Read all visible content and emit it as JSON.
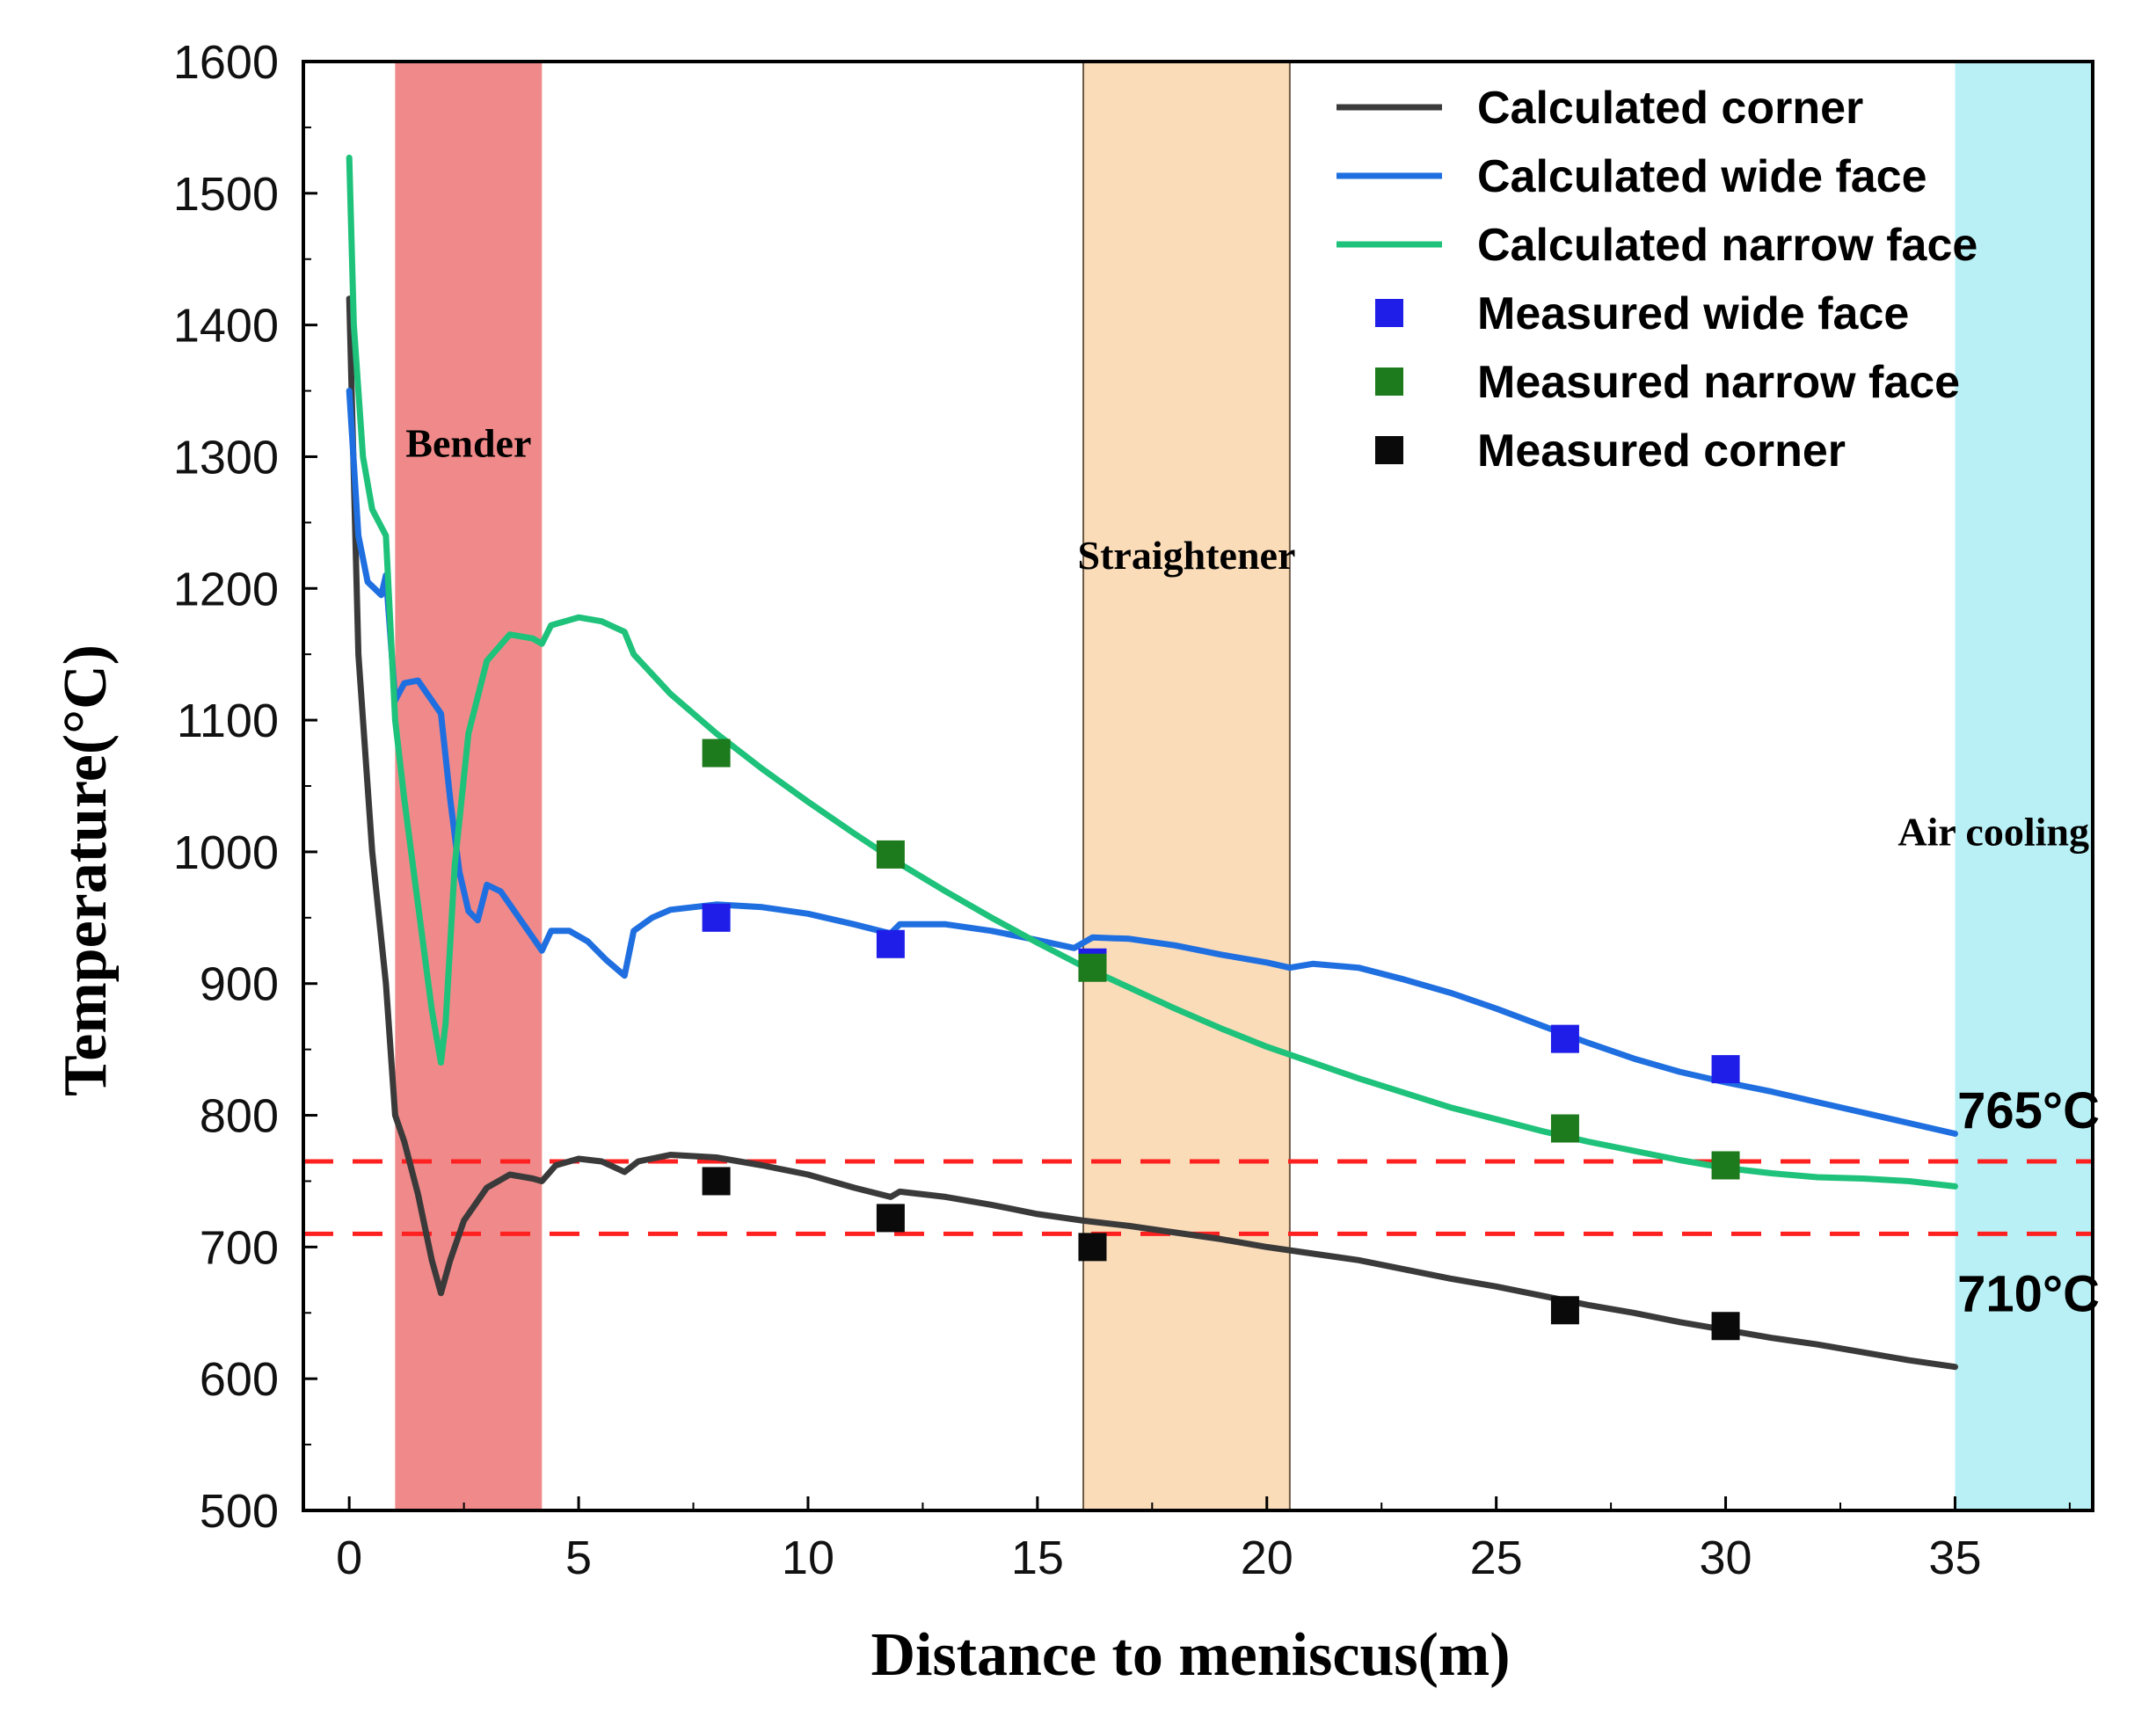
{
  "chart_data": {
    "type": "line",
    "title": "",
    "xlabel": "Distance to meniscus(m)",
    "ylabel": "Temperature(°C)",
    "xlim": [
      -1,
      38
    ],
    "ylim": [
      500,
      1600
    ],
    "xticks": [
      "0",
      "5",
      "10",
      "15",
      "20",
      "25",
      "30",
      "35"
    ],
    "yticks": [
      "500",
      "600",
      "700",
      "800",
      "900",
      "1000",
      "1100",
      "1200",
      "1300",
      "1400",
      "1500",
      "1600"
    ],
    "regions": [
      {
        "label": "Bender",
        "x_start": 1.0,
        "x_end": 4.2,
        "color": "#f08a8a"
      },
      {
        "label": "Straightener",
        "x_start": 16.0,
        "x_end": 20.5,
        "color": "#fbdcb9"
      },
      {
        "label": "Air cooling",
        "x_start": 35.0,
        "x_end": 38.0,
        "color": "#b8f0f5"
      }
    ],
    "reference_lines": [
      {
        "label": "765°C",
        "y": 765,
        "color": "#ff2020"
      },
      {
        "label": "710°C",
        "y": 710,
        "color": "#ff2020"
      }
    ],
    "series": [
      {
        "name": "Calculated corner",
        "kind": "line",
        "color": "#3a3a3a",
        "points": [
          [
            0,
            1420
          ],
          [
            0.2,
            1150
          ],
          [
            0.5,
            1000
          ],
          [
            0.8,
            900
          ],
          [
            1.0,
            800
          ],
          [
            1.2,
            780
          ],
          [
            1.5,
            740
          ],
          [
            1.8,
            690
          ],
          [
            2.0,
            665
          ],
          [
            2.2,
            690
          ],
          [
            2.5,
            720
          ],
          [
            3.0,
            745
          ],
          [
            3.5,
            755
          ],
          [
            4.0,
            752
          ],
          [
            4.2,
            750
          ],
          [
            4.5,
            762
          ],
          [
            5.0,
            767
          ],
          [
            5.5,
            765
          ],
          [
            6.0,
            757
          ],
          [
            6.3,
            765
          ],
          [
            7.0,
            770
          ],
          [
            8.0,
            768
          ],
          [
            9.0,
            762
          ],
          [
            10.0,
            755
          ],
          [
            11.0,
            745
          ],
          [
            11.8,
            738
          ],
          [
            12.0,
            742
          ],
          [
            13.0,
            738
          ],
          [
            14.0,
            732
          ],
          [
            15.0,
            725
          ],
          [
            16.0,
            720
          ],
          [
            17.0,
            716
          ],
          [
            18.0,
            711
          ],
          [
            19.0,
            706
          ],
          [
            20.0,
            700
          ],
          [
            21.0,
            695
          ],
          [
            22.0,
            690
          ],
          [
            23.0,
            683
          ],
          [
            24.0,
            676
          ],
          [
            25.0,
            670
          ],
          [
            26.0,
            663
          ],
          [
            27.0,
            656
          ],
          [
            28.0,
            650
          ],
          [
            29.0,
            643
          ],
          [
            30.0,
            637
          ],
          [
            31.0,
            631
          ],
          [
            32.0,
            626
          ],
          [
            33.0,
            620
          ],
          [
            34.0,
            614
          ],
          [
            35.0,
            609
          ]
        ]
      },
      {
        "name": "Calculated wide face",
        "kind": "line",
        "color": "#1f6fe0",
        "points": [
          [
            0,
            1350
          ],
          [
            0.2,
            1240
          ],
          [
            0.4,
            1205
          ],
          [
            0.7,
            1195
          ],
          [
            0.8,
            1210
          ],
          [
            1.0,
            1115
          ],
          [
            1.2,
            1128
          ],
          [
            1.5,
            1130
          ],
          [
            1.8,
            1115
          ],
          [
            2.0,
            1105
          ],
          [
            2.2,
            1040
          ],
          [
            2.4,
            985
          ],
          [
            2.6,
            955
          ],
          [
            2.8,
            948
          ],
          [
            3.0,
            975
          ],
          [
            3.3,
            970
          ],
          [
            3.6,
            955
          ],
          [
            4.0,
            935
          ],
          [
            4.2,
            925
          ],
          [
            4.4,
            940
          ],
          [
            4.8,
            940
          ],
          [
            5.2,
            932
          ],
          [
            5.6,
            918
          ],
          [
            6.0,
            906
          ],
          [
            6.2,
            940
          ],
          [
            6.6,
            950
          ],
          [
            7.0,
            956
          ],
          [
            8.0,
            960
          ],
          [
            9.0,
            958
          ],
          [
            10.0,
            953
          ],
          [
            11.0,
            945
          ],
          [
            11.8,
            938
          ],
          [
            12.0,
            945
          ],
          [
            13.0,
            945
          ],
          [
            14.0,
            940
          ],
          [
            15.0,
            933
          ],
          [
            15.8,
            927
          ],
          [
            16.2,
            935
          ],
          [
            17.0,
            934
          ],
          [
            18.0,
            929
          ],
          [
            19.0,
            922
          ],
          [
            20.0,
            916
          ],
          [
            20.5,
            912
          ],
          [
            21.0,
            915
          ],
          [
            22.0,
            912
          ],
          [
            23.0,
            903
          ],
          [
            24.0,
            893
          ],
          [
            25.0,
            881
          ],
          [
            26.0,
            868
          ],
          [
            27.0,
            855
          ],
          [
            28.0,
            843
          ],
          [
            29.0,
            833
          ],
          [
            30.0,
            825
          ],
          [
            31.0,
            818
          ],
          [
            32.0,
            810
          ],
          [
            33.0,
            802
          ],
          [
            34.0,
            794
          ],
          [
            35.0,
            786
          ]
        ]
      },
      {
        "name": "Calculated narrow face",
        "kind": "line",
        "color": "#1ec27a",
        "points": [
          [
            0,
            1527
          ],
          [
            0.1,
            1400
          ],
          [
            0.3,
            1300
          ],
          [
            0.5,
            1260
          ],
          [
            0.8,
            1240
          ],
          [
            1.0,
            1100
          ],
          [
            1.2,
            1040
          ],
          [
            1.5,
            960
          ],
          [
            1.8,
            880
          ],
          [
            2.0,
            840
          ],
          [
            2.1,
            870
          ],
          [
            2.3,
            990
          ],
          [
            2.6,
            1090
          ],
          [
            3.0,
            1145
          ],
          [
            3.5,
            1165
          ],
          [
            4.0,
            1162
          ],
          [
            4.2,
            1158
          ],
          [
            4.4,
            1172
          ],
          [
            5.0,
            1178
          ],
          [
            5.5,
            1175
          ],
          [
            6.0,
            1167
          ],
          [
            6.2,
            1150
          ],
          [
            7.0,
            1120
          ],
          [
            8.0,
            1090
          ],
          [
            9.0,
            1063
          ],
          [
            10.0,
            1038
          ],
          [
            11.0,
            1014
          ],
          [
            12.0,
            991
          ],
          [
            13.0,
            970
          ],
          [
            14.0,
            950
          ],
          [
            15.0,
            931
          ],
          [
            16.0,
            913
          ],
          [
            17.0,
            897
          ],
          [
            18.0,
            881
          ],
          [
            19.0,
            866
          ],
          [
            20.0,
            852
          ],
          [
            21.0,
            840
          ],
          [
            22.0,
            828
          ],
          [
            23.0,
            817
          ],
          [
            24.0,
            806
          ],
          [
            25.0,
            797
          ],
          [
            26.0,
            788
          ],
          [
            27.0,
            780
          ],
          [
            28.0,
            773
          ],
          [
            29.0,
            766
          ],
          [
            30.0,
            760
          ],
          [
            31.0,
            756
          ],
          [
            32.0,
            753
          ],
          [
            33.0,
            752
          ],
          [
            34.0,
            750
          ],
          [
            35.0,
            746
          ]
        ]
      },
      {
        "name": "Measured wide face",
        "kind": "scatter",
        "color": "#1e1ee8",
        "points": [
          [
            8.0,
            950
          ],
          [
            11.8,
            930
          ],
          [
            16.2,
            916
          ],
          [
            26.5,
            858
          ],
          [
            30.0,
            835
          ]
        ]
      },
      {
        "name": "Measured narrow face",
        "kind": "scatter",
        "color": "#1d7a1d",
        "points": [
          [
            8.0,
            1075
          ],
          [
            11.8,
            998
          ],
          [
            16.2,
            912
          ],
          [
            26.5,
            790
          ],
          [
            30.0,
            762
          ]
        ]
      },
      {
        "name": "Measured corner",
        "kind": "scatter",
        "color": "#0a0a0a",
        "points": [
          [
            8.0,
            750
          ],
          [
            11.8,
            722
          ],
          [
            16.2,
            700
          ],
          [
            26.5,
            652
          ],
          [
            30.0,
            640
          ]
        ]
      }
    ],
    "legend": {
      "placement": "top-right",
      "entries": [
        {
          "label": "Calculated corner",
          "kind": "line",
          "color": "#3a3a3a"
        },
        {
          "label": "Calculated wide face",
          "kind": "line",
          "color": "#1f6fe0"
        },
        {
          "label": "Calculated narrow face",
          "kind": "line",
          "color": "#1ec27a"
        },
        {
          "label": "Measured wide face",
          "kind": "marker",
          "color": "#1e1ee8"
        },
        {
          "label": "Measured narrow face",
          "kind": "marker",
          "color": "#1d7a1d"
        },
        {
          "label": "Measured corner",
          "kind": "marker",
          "color": "#0a0a0a"
        }
      ]
    }
  }
}
